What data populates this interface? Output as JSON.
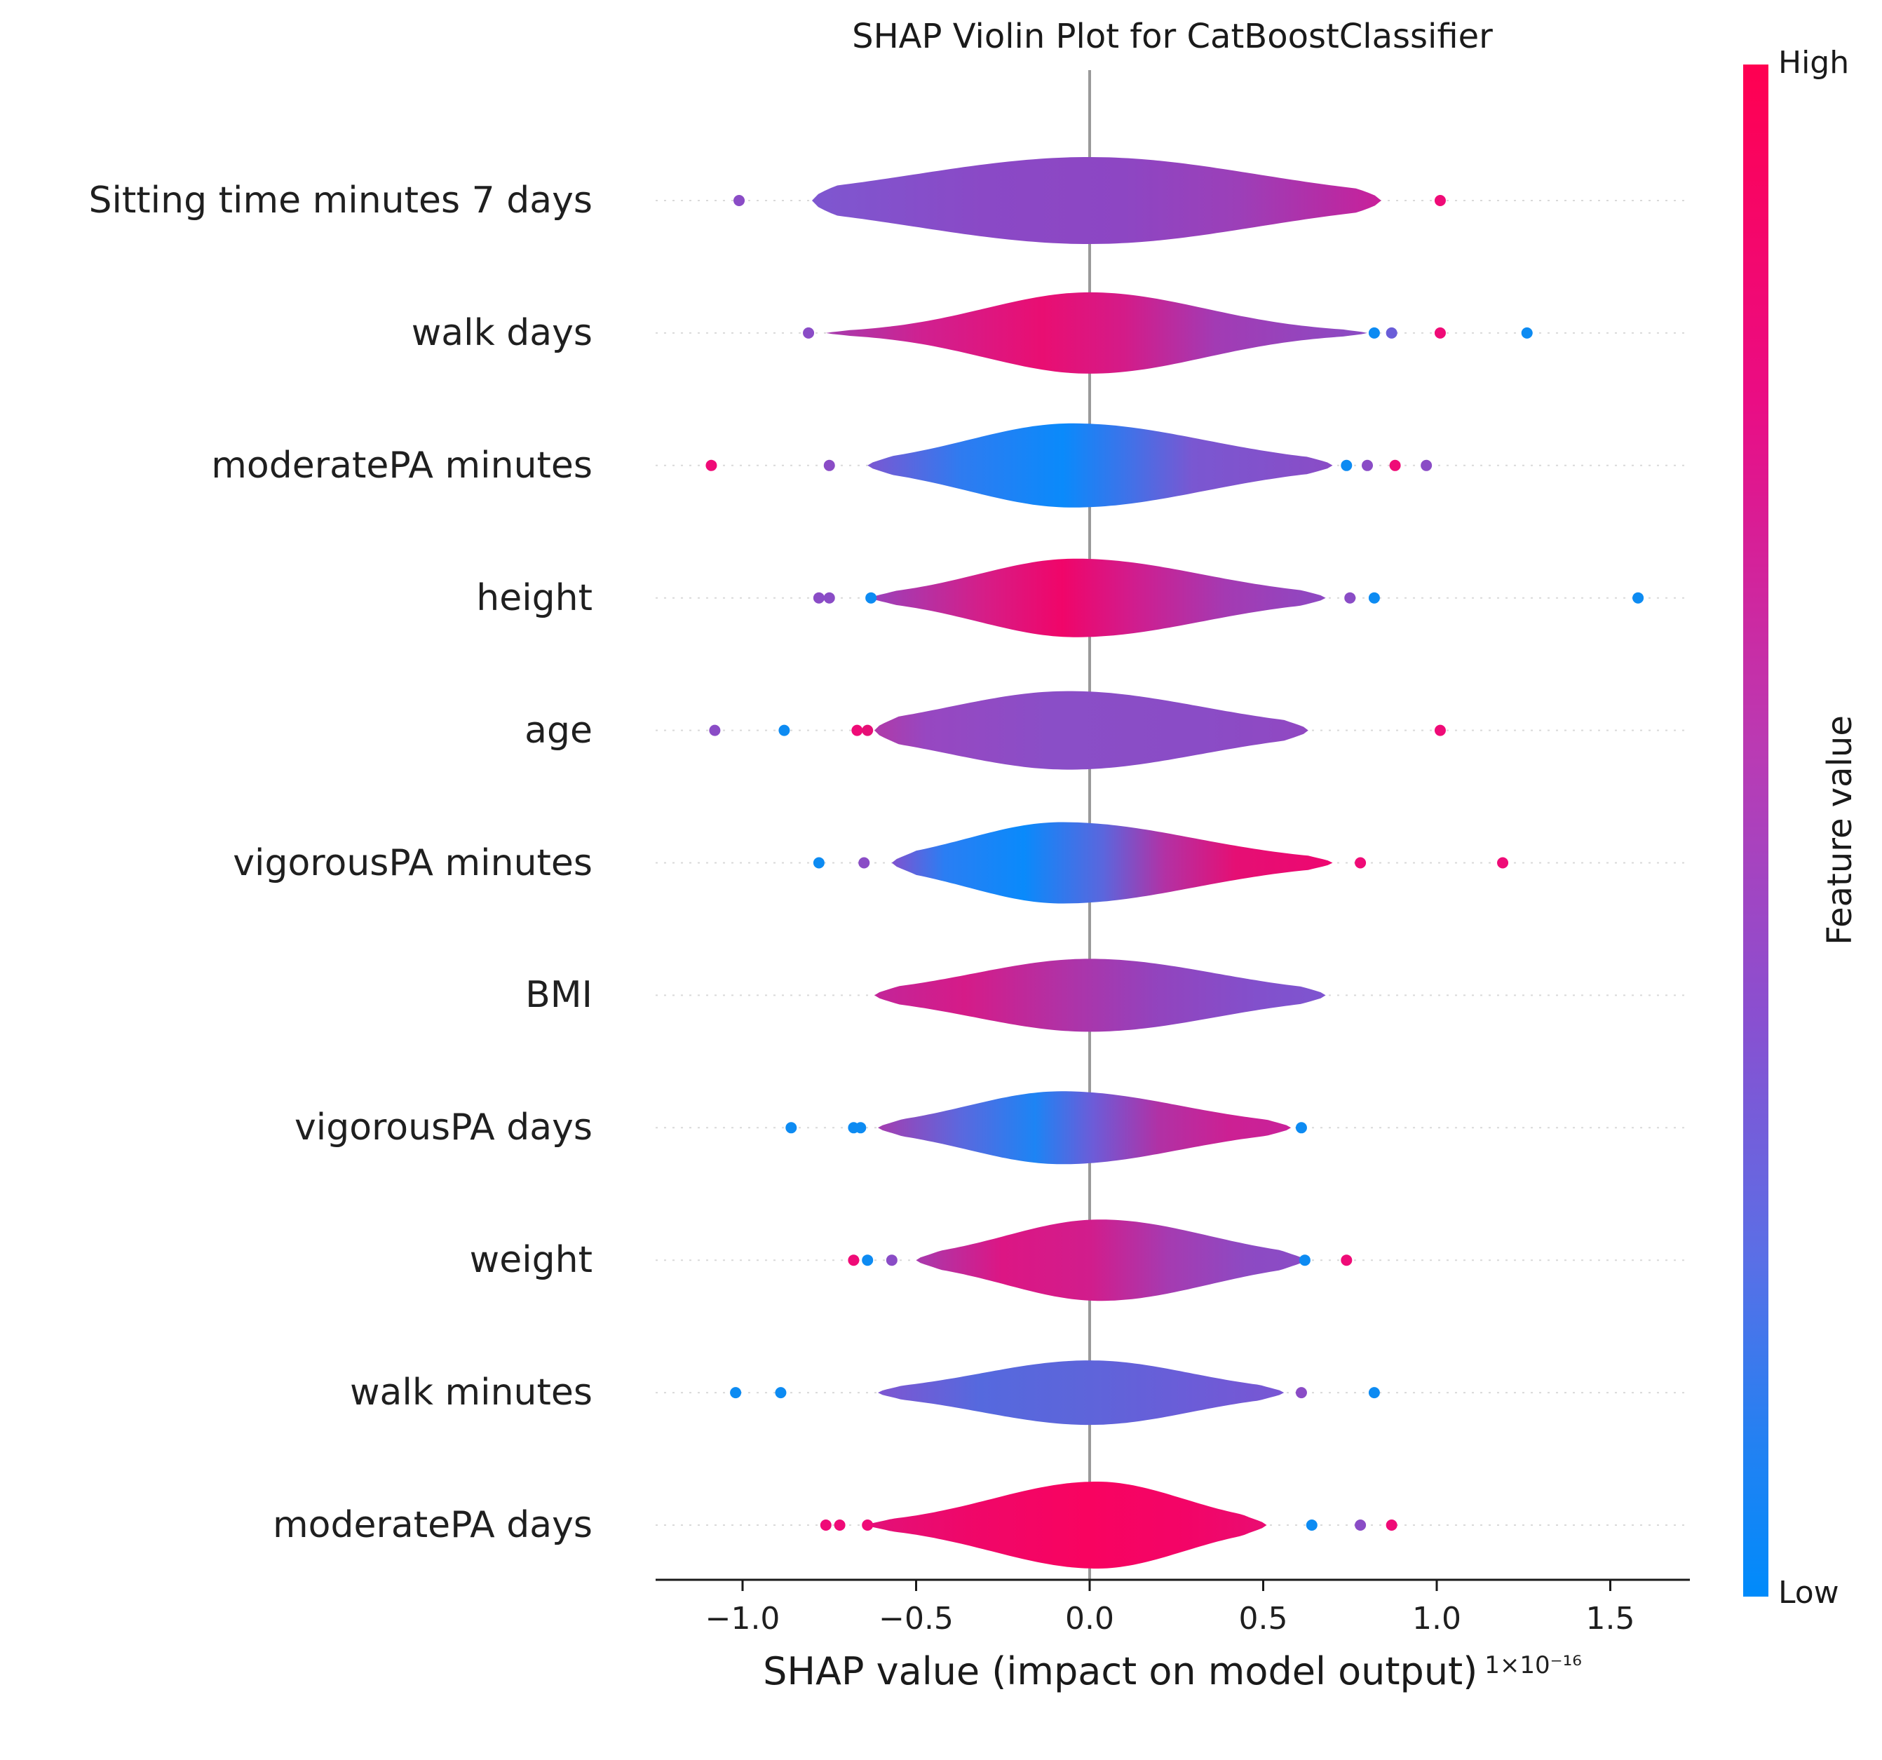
{
  "title": "SHAP Violin Plot for CatBoostClassifier",
  "x_axis": {
    "label": "SHAP value (impact on model output)",
    "scale_note": "1×10⁻¹⁶",
    "tick_labels": [
      "−1.0",
      "−0.5",
      "0.0",
      "0.5",
      "1.0",
      "1.5"
    ],
    "tick_values": [
      -1.0,
      -0.5,
      0.0,
      0.5,
      1.0,
      1.5
    ]
  },
  "colorbar": {
    "high_label": "High",
    "low_label": "Low",
    "axis_label": "Feature value",
    "gradient": [
      [
        0,
        "#ff0051"
      ],
      [
        0.22,
        "#ea0d84"
      ],
      [
        0.45,
        "#b93bb4"
      ],
      [
        0.62,
        "#8a4fd0"
      ],
      [
        0.78,
        "#5a6fe6"
      ],
      [
        0.9,
        "#2381f2"
      ],
      [
        1,
        "#008bfb"
      ]
    ]
  },
  "chart_data": {
    "type": "violin",
    "title": "SHAP Violin Plot for CatBoostClassifier",
    "xlabel": "SHAP value (impact on model output)",
    "x_scale_factor": "1e-16",
    "xlim": [
      -1.26,
      1.73
    ],
    "x_ticks": [
      -1.0,
      -0.5,
      0.0,
      0.5,
      1.0,
      1.5
    ],
    "grid": "dotted-horizontal",
    "zero_line": true,
    "colormap": {
      "low": "#008bfb",
      "high": "#ff0051"
    },
    "features": [
      {
        "name": "Sitting time minutes 7 days",
        "violin": {
          "range": [
            -0.8,
            0.84
          ],
          "center": 0.0,
          "spread": [
            0.5,
            0.48
          ],
          "peak_height": 62,
          "gradient": [
            [
              0,
              "#7e57d0"
            ],
            [
              0.3,
              "#8a49c6"
            ],
            [
              0.55,
              "#8d46c3"
            ],
            [
              0.75,
              "#9c3fb8"
            ],
            [
              0.9,
              "#b42da6"
            ],
            [
              1,
              "#c9209a"
            ]
          ]
        },
        "outliers": [
          {
            "x": -1.01,
            "color": "#8a4cc6"
          },
          {
            "x": 1.01,
            "color": "#ef0b77"
          }
        ]
      },
      {
        "name": "walk days",
        "violin": {
          "range": [
            -0.76,
            0.8
          ],
          "center": 0.0,
          "spread": [
            0.3,
            0.33
          ],
          "peak_height": 58,
          "gradient": [
            [
              0,
              "#a53cae"
            ],
            [
              0.18,
              "#d02090"
            ],
            [
              0.4,
              "#e90e72"
            ],
            [
              0.55,
              "#d41b88"
            ],
            [
              0.72,
              "#a23bb4"
            ],
            [
              1,
              "#8a4cc4"
            ]
          ]
        },
        "outliers": [
          {
            "x": -0.81,
            "color": "#8a4cc6"
          },
          {
            "x": 0.82,
            "color": "#0d8bf2"
          },
          {
            "x": 0.87,
            "color": "#6a5dd8"
          },
          {
            "x": 1.01,
            "color": "#ef0b77"
          },
          {
            "x": 1.26,
            "color": "#0d8bf2"
          }
        ]
      },
      {
        "name": "moderatePA minutes",
        "violin": {
          "range": [
            -0.64,
            0.7
          ],
          "center": -0.05,
          "spread": [
            0.3,
            0.38
          ],
          "peak_height": 60,
          "gradient": [
            [
              0,
              "#7b57d2"
            ],
            [
              0.2,
              "#2f7bf0"
            ],
            [
              0.42,
              "#0a8afb"
            ],
            [
              0.55,
              "#3b74ea"
            ],
            [
              0.7,
              "#7a57d1"
            ],
            [
              1,
              "#8a4cc6"
            ]
          ]
        },
        "outliers": [
          {
            "x": -1.09,
            "color": "#ef0b77"
          },
          {
            "x": -0.75,
            "color": "#8a4cc6"
          },
          {
            "x": 0.74,
            "color": "#0d8bf2"
          },
          {
            "x": 0.8,
            "color": "#8a4cc6"
          },
          {
            "x": 0.88,
            "color": "#ef0b77"
          },
          {
            "x": 0.97,
            "color": "#8a4cc6"
          }
        ]
      },
      {
        "name": "height",
        "violin": {
          "range": [
            -0.63,
            0.68
          ],
          "center": -0.04,
          "spread": [
            0.28,
            0.36
          ],
          "peak_height": 56,
          "gradient": [
            [
              0,
              "#9a41bb"
            ],
            [
              0.25,
              "#d61d87"
            ],
            [
              0.42,
              "#f00569"
            ],
            [
              0.58,
              "#d01d8e"
            ],
            [
              0.78,
              "#a43ab2"
            ],
            [
              1,
              "#8d49c3"
            ]
          ]
        },
        "outliers": [
          {
            "x": -0.78,
            "color": "#8a4cc6"
          },
          {
            "x": -0.75,
            "color": "#8a4cc6"
          },
          {
            "x": -0.63,
            "color": "#0d8bf2"
          },
          {
            "x": 0.75,
            "color": "#8a4cc6"
          },
          {
            "x": 0.82,
            "color": "#0d8bf2"
          },
          {
            "x": 1.58,
            "color": "#0d8bf2"
          }
        ]
      },
      {
        "name": "age",
        "violin": {
          "range": [
            -0.62,
            0.63
          ],
          "center": -0.06,
          "spread": [
            0.34,
            0.38
          ],
          "peak_height": 56,
          "gradient": [
            [
              0,
              "#b03aa8"
            ],
            [
              0.12,
              "#9747c1"
            ],
            [
              0.4,
              "#8a4ec7"
            ],
            [
              0.75,
              "#8a4cc6"
            ],
            [
              1,
              "#9148c2"
            ]
          ]
        },
        "outliers": [
          {
            "x": -1.08,
            "color": "#8a4cc6"
          },
          {
            "x": -0.88,
            "color": "#0d8bf2"
          },
          {
            "x": -0.67,
            "color": "#ef0b77"
          },
          {
            "x": -0.64,
            "color": "#e60f76"
          },
          {
            "x": 1.01,
            "color": "#ef0b77"
          }
        ]
      },
      {
        "name": "vigorousPA minutes",
        "violin": {
          "range": [
            -0.57,
            0.7
          ],
          "center": -0.08,
          "spread": [
            0.27,
            0.38
          ],
          "peak_height": 58,
          "gradient": [
            [
              0,
              "#8052cf"
            ],
            [
              0.12,
              "#2a7ef3"
            ],
            [
              0.3,
              "#0a8afb"
            ],
            [
              0.48,
              "#5b66dd"
            ],
            [
              0.62,
              "#b331a4"
            ],
            [
              0.78,
              "#e50f74"
            ],
            [
              1,
              "#ee0770"
            ]
          ]
        },
        "outliers": [
          {
            "x": -0.78,
            "color": "#0d8bf2"
          },
          {
            "x": -0.65,
            "color": "#8a4cc6"
          },
          {
            "x": 0.78,
            "color": "#ef0b77"
          },
          {
            "x": 1.19,
            "color": "#ef0b77"
          }
        ]
      },
      {
        "name": "BMI",
        "violin": {
          "range": [
            -0.62,
            0.68
          ],
          "center": 0.0,
          "spread": [
            0.33,
            0.36
          ],
          "peak_height": 52,
          "gradient": [
            [
              0,
              "#c32599"
            ],
            [
              0.2,
              "#d51b88"
            ],
            [
              0.42,
              "#b032a6"
            ],
            [
              0.62,
              "#9343bd"
            ],
            [
              0.85,
              "#8250cc"
            ],
            [
              1,
              "#7e55d0"
            ]
          ]
        },
        "outliers": []
      },
      {
        "name": "vigorousPA days",
        "violin": {
          "range": [
            -0.61,
            0.58
          ],
          "center": -0.08,
          "spread": [
            0.27,
            0.34
          ],
          "peak_height": 52,
          "gradient": [
            [
              0,
              "#a53db0"
            ],
            [
              0.2,
              "#5b68de"
            ],
            [
              0.38,
              "#1d84f4"
            ],
            [
              0.52,
              "#6c5cd8"
            ],
            [
              0.68,
              "#b131a5"
            ],
            [
              0.85,
              "#cc2093"
            ],
            [
              1,
              "#c9229a"
            ]
          ]
        },
        "outliers": [
          {
            "x": -0.86,
            "color": "#0d8bf2"
          },
          {
            "x": -0.68,
            "color": "#0d8bf2"
          },
          {
            "x": -0.66,
            "color": "#0d8bf2"
          },
          {
            "x": 0.61,
            "color": "#0d8bf2"
          }
        ]
      },
      {
        "name": "weight",
        "violin": {
          "range": [
            -0.5,
            0.62
          ],
          "center": 0.03,
          "spread": [
            0.27,
            0.31
          ],
          "peak_height": 58,
          "gradient": [
            [
              0,
              "#a83aad"
            ],
            [
              0.22,
              "#dc1684"
            ],
            [
              0.45,
              "#d11d8c"
            ],
            [
              0.65,
              "#a53bb1"
            ],
            [
              0.85,
              "#8d4ac3"
            ],
            [
              1,
              "#8a4cc6"
            ]
          ]
        },
        "outliers": [
          {
            "x": -0.68,
            "color": "#ef0b77"
          },
          {
            "x": -0.64,
            "color": "#0d8bf2"
          },
          {
            "x": -0.57,
            "color": "#8a4cc6"
          },
          {
            "x": 0.62,
            "color": "#0d8bf2"
          },
          {
            "x": 0.74,
            "color": "#ef0b77"
          }
        ]
      },
      {
        "name": "walk minutes",
        "violin": {
          "range": [
            -0.61,
            0.56
          ],
          "center": 0.0,
          "spread": [
            0.31,
            0.29
          ],
          "peak_height": 46,
          "gradient": [
            [
              0,
              "#7e56d1"
            ],
            [
              0.25,
              "#5569de"
            ],
            [
              0.5,
              "#5d65da"
            ],
            [
              0.75,
              "#6a5dd8"
            ],
            [
              1,
              "#7956d3"
            ]
          ]
        },
        "outliers": [
          {
            "x": -1.02,
            "color": "#0d8bf2"
          },
          {
            "x": -0.89,
            "color": "#0d8bf2"
          },
          {
            "x": 0.61,
            "color": "#8a4cc6"
          },
          {
            "x": 0.82,
            "color": "#0d8bf2"
          }
        ]
      },
      {
        "name": "moderatePA days",
        "violin": {
          "range": [
            -0.64,
            0.51
          ],
          "center": 0.02,
          "spread": [
            0.3,
            0.25
          ],
          "peak_height": 62,
          "gradient": [
            [
              0,
              "#e21179"
            ],
            [
              0.25,
              "#ef0769"
            ],
            [
              0.55,
              "#f80360"
            ],
            [
              0.8,
              "#f30467"
            ],
            [
              1,
              "#e90d72"
            ]
          ]
        },
        "outliers": [
          {
            "x": -0.76,
            "color": "#ef0b77"
          },
          {
            "x": -0.72,
            "color": "#ef0b77"
          },
          {
            "x": -0.64,
            "color": "#ef0b77"
          },
          {
            "x": 0.64,
            "color": "#0d8bf2"
          },
          {
            "x": 0.78,
            "color": "#8a4cc6"
          },
          {
            "x": 0.87,
            "color": "#ef0b77"
          }
        ]
      }
    ]
  }
}
